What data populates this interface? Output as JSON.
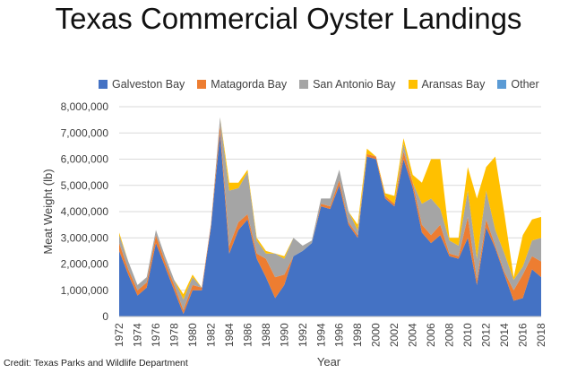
{
  "chart_data": {
    "type": "area",
    "stacked": true,
    "title": "Texas Commercial Oyster Landings",
    "xlabel": "Year",
    "ylabel": "Meat Weight (lb)",
    "ylim": [
      0,
      8000000
    ],
    "yticks": [
      "0",
      "1,000,000",
      "2,000,000",
      "3,000,000",
      "4,000,000",
      "5,000,000",
      "6,000,000",
      "7,000,000",
      "8,000,000"
    ],
    "xticks": [
      "1972",
      "1974",
      "1976",
      "1978",
      "1980",
      "1982",
      "1984",
      "1986",
      "1988",
      "1990",
      "1992",
      "1994",
      "1996",
      "1998",
      "2000",
      "2002",
      "2004",
      "2006",
      "2008",
      "2010",
      "2012",
      "2014",
      "2016",
      "2018"
    ],
    "x": [
      1972,
      1973,
      1974,
      1975,
      1976,
      1977,
      1978,
      1979,
      1980,
      1981,
      1982,
      1983,
      1984,
      1985,
      1986,
      1987,
      1988,
      1989,
      1990,
      1991,
      1992,
      1993,
      1994,
      1995,
      1996,
      1997,
      1998,
      1999,
      2000,
      2001,
      2002,
      2003,
      2004,
      2005,
      2006,
      2007,
      2008,
      2009,
      2010,
      2011,
      2012,
      2013,
      2014,
      2015,
      2016,
      2017,
      2018
    ],
    "grid": true,
    "legend_position": "top",
    "series": [
      {
        "name": "Galveston Bay",
        "color": "#4472C4",
        "values": [
          2500000,
          1600000,
          800000,
          1100000,
          2800000,
          1900000,
          1000000,
          100000,
          1000000,
          1000000,
          3400000,
          7000000,
          2400000,
          3300000,
          3700000,
          2200000,
          1500000,
          700000,
          1200000,
          2300000,
          2500000,
          2800000,
          4200000,
          4100000,
          5000000,
          3500000,
          3000000,
          6100000,
          6000000,
          4500000,
          4200000,
          6000000,
          4900000,
          3200000,
          2800000,
          3100000,
          2300000,
          2200000,
          3000000,
          1200000,
          3400000,
          2600000,
          1600000,
          600000,
          700000,
          1800000,
          1500000
        ]
      },
      {
        "name": "Matagorda Bay",
        "color": "#ED7D31",
        "values": [
          300000,
          200000,
          200000,
          200000,
          300000,
          200000,
          200000,
          150000,
          200000,
          100000,
          100000,
          300000,
          300000,
          300000,
          200000,
          200000,
          700000,
          800000,
          400000,
          0,
          0,
          0,
          100000,
          100000,
          200000,
          100000,
          100000,
          100000,
          100000,
          100000,
          100000,
          300000,
          200000,
          300000,
          300000,
          400000,
          100000,
          100000,
          800000,
          200000,
          300000,
          100000,
          100000,
          400000,
          900000,
          500000,
          600000
        ]
      },
      {
        "name": "San Antonio Bay",
        "color": "#A5A5A5",
        "values": [
          300000,
          300000,
          200000,
          200000,
          200000,
          200000,
          200000,
          400000,
          300000,
          0,
          0,
          300000,
          2100000,
          1300000,
          1600000,
          500000,
          200000,
          900000,
          600000,
          700000,
          200000,
          100000,
          200000,
          300000,
          400000,
          400000,
          200000,
          0,
          0,
          0,
          0,
          300000,
          0,
          800000,
          1400000,
          600000,
          500000,
          400000,
          1000000,
          800000,
          1100000,
          600000,
          700000,
          400000,
          300000,
          600000,
          900000
        ]
      },
      {
        "name": "Aransas Bay",
        "color": "#FFC000",
        "values": [
          100000,
          0,
          0,
          0,
          0,
          0,
          0,
          200000,
          100000,
          0,
          0,
          0,
          300000,
          200000,
          100000,
          100000,
          100000,
          0,
          100000,
          0,
          0,
          0,
          0,
          0,
          0,
          0,
          200000,
          200000,
          0,
          100000,
          300000,
          200000,
          300000,
          800000,
          1500000,
          1900000,
          100000,
          300000,
          900000,
          2300000,
          900000,
          2800000,
          1500000,
          100000,
          1200000,
          800000,
          800000
        ]
      },
      {
        "name": "Other",
        "color": "#5B9BD5",
        "values": [
          0,
          0,
          0,
          0,
          0,
          0,
          0,
          0,
          0,
          0,
          0,
          0,
          0,
          0,
          0,
          0,
          0,
          0,
          0,
          0,
          0,
          0,
          0,
          0,
          0,
          0,
          0,
          0,
          0,
          0,
          0,
          0,
          0,
          0,
          0,
          0,
          0,
          0,
          0,
          0,
          0,
          0,
          0,
          0,
          0,
          0,
          0
        ]
      }
    ]
  },
  "credit": "Credit: Texas Parks and Wildlife Department"
}
